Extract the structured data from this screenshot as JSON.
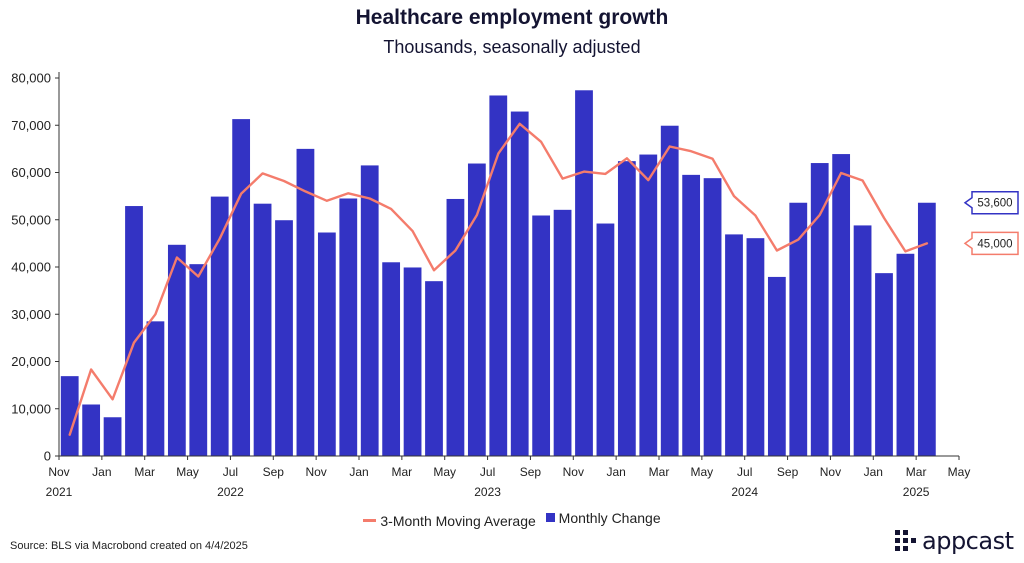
{
  "header": {
    "title": "Healthcare employment growth",
    "subtitle": "Thousands, seasonally adjusted"
  },
  "legend": {
    "line_label": "3-Month Moving Average",
    "bar_label": "Monthly Change"
  },
  "footer": {
    "source": "Source: BLS via Macrobond created on 4/4/2025",
    "logo_text": "appcast"
  },
  "colors": {
    "bar": "#3333c4",
    "line": "#f47c6c",
    "axis": "#333333"
  },
  "chart_data": {
    "type": "bar",
    "title": "Healthcare employment growth",
    "subtitle": "Thousands, seasonally adjusted",
    "ylim": [
      0,
      80000
    ],
    "yticks": [
      0,
      10000,
      20000,
      30000,
      40000,
      50000,
      60000,
      70000,
      80000
    ],
    "ytick_labels": [
      "0",
      "10,000",
      "20,000",
      "30,000",
      "40,000",
      "50,000",
      "60,000",
      "70,000",
      "80,000"
    ],
    "categories": [
      "2021-11",
      "2021-12",
      "2022-01",
      "2022-02",
      "2022-03",
      "2022-04",
      "2022-05",
      "2022-06",
      "2022-07",
      "2022-08",
      "2022-09",
      "2022-10",
      "2022-11",
      "2022-12",
      "2023-01",
      "2023-02",
      "2023-03",
      "2023-04",
      "2023-05",
      "2023-06",
      "2023-07",
      "2023-08",
      "2023-09",
      "2023-10",
      "2023-11",
      "2023-12",
      "2024-01",
      "2024-02",
      "2024-03",
      "2024-04",
      "2024-05",
      "2024-06",
      "2024-07",
      "2024-08",
      "2024-09",
      "2024-10",
      "2024-11",
      "2024-12",
      "2025-01",
      "2025-02",
      "2025-03"
    ],
    "x_ticks": [
      {
        "index": 0,
        "month": "Nov",
        "year": "2021"
      },
      {
        "index": 2,
        "month": "Jan",
        "year": ""
      },
      {
        "index": 4,
        "month": "Mar",
        "year": ""
      },
      {
        "index": 6,
        "month": "May",
        "year": ""
      },
      {
        "index": 8,
        "month": "Jul",
        "year": "2022"
      },
      {
        "index": 10,
        "month": "Sep",
        "year": ""
      },
      {
        "index": 12,
        "month": "Nov",
        "year": ""
      },
      {
        "index": 14,
        "month": "Jan",
        "year": ""
      },
      {
        "index": 16,
        "month": "Mar",
        "year": ""
      },
      {
        "index": 18,
        "month": "May",
        "year": ""
      },
      {
        "index": 20,
        "month": "Jul",
        "year": "2023"
      },
      {
        "index": 22,
        "month": "Sep",
        "year": ""
      },
      {
        "index": 24,
        "month": "Nov",
        "year": ""
      },
      {
        "index": 26,
        "month": "Jan",
        "year": ""
      },
      {
        "index": 28,
        "month": "Mar",
        "year": ""
      },
      {
        "index": 30,
        "month": "May",
        "year": ""
      },
      {
        "index": 32,
        "month": "Jul",
        "year": "2024"
      },
      {
        "index": 34,
        "month": "Sep",
        "year": ""
      },
      {
        "index": 36,
        "month": "Nov",
        "year": ""
      },
      {
        "index": 38,
        "month": "Jan",
        "year": ""
      },
      {
        "index": 40,
        "month": "Mar",
        "year": "2025"
      },
      {
        "index": 42,
        "month": "May",
        "year": ""
      }
    ],
    "series": [
      {
        "name": "Monthly Change",
        "type": "bar",
        "values": [
          16900,
          10900,
          8200,
          52900,
          28500,
          44700,
          40600,
          54900,
          71300,
          53400,
          49900,
          65000,
          47300,
          54500,
          61500,
          41000,
          39900,
          37000,
          54400,
          61900,
          76300,
          72900,
          50900,
          52100,
          77400,
          49200,
          62400,
          63800,
          69900,
          59500,
          58800,
          46900,
          46100,
          37900,
          53600,
          62000,
          63900,
          48800,
          38700,
          42800,
          53600
        ]
      },
      {
        "name": "3-Month Moving Average",
        "type": "line",
        "values": [
          4500,
          18300,
          12000,
          24000,
          30000,
          42000,
          38000,
          46000,
          55500,
          59800,
          58200,
          56000,
          54000,
          55600,
          54500,
          52300,
          47600,
          39300,
          43500,
          51000,
          64000,
          70300,
          66500,
          58700,
          60200,
          59700,
          63000,
          58400,
          65500,
          64500,
          62900,
          55000,
          50900,
          43500,
          45800,
          51000,
          59900,
          58300,
          50400,
          43300,
          45000
        ]
      }
    ],
    "end_labels": [
      {
        "series": "Monthly Change",
        "text": "53,600",
        "value": 53600
      },
      {
        "series": "3-Month Moving Average",
        "text": "45,000",
        "value": 45000
      }
    ]
  }
}
